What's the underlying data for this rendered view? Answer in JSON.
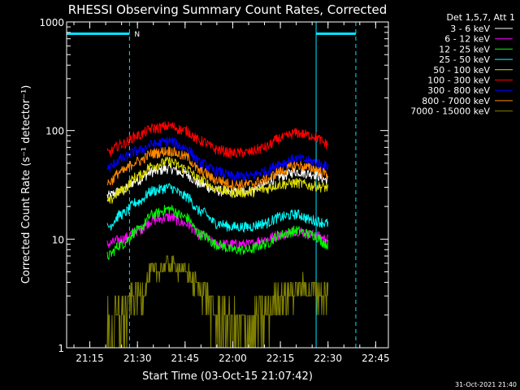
{
  "chart_data": {
    "type": "line",
    "title": "RHESSI Observing Summary Count Rates, Corrected",
    "xlabel": "Start Time (03-Oct-15 21:07:42)",
    "ylabel": "Corrected Count Rate (s⁻¹ detector⁻¹)",
    "yscale": "log",
    "ylim": [
      1,
      1000
    ],
    "y_ticks": [
      "1",
      "10",
      "100",
      "1000"
    ],
    "x_ticks": [
      "21:15",
      "21:30",
      "21:45",
      "22:00",
      "22:15",
      "22:30",
      "22:45"
    ],
    "xlim": [
      "21:07:42",
      "22:49:00"
    ],
    "grid": false,
    "legend_title": "Det 1,5,7, Att 1",
    "legend_position": "right",
    "data_start": "21:20:30",
    "data_end": "22:30:00",
    "series": [
      {
        "name": "3 - 6 keV",
        "color": "#ffffff",
        "x": [
          "21:20:30",
          "21:25",
          "21:30",
          "21:35",
          "21:40",
          "21:45",
          "21:50",
          "21:55",
          "22:00",
          "22:05",
          "22:10",
          "22:15",
          "22:20",
          "22:25",
          "22:30"
        ],
        "y": [
          25,
          28,
          35,
          42,
          45,
          40,
          32,
          28,
          27,
          28,
          32,
          38,
          42,
          40,
          35
        ]
      },
      {
        "name": "6 - 12 keV",
        "color": "#ff00ff",
        "x": [
          "21:20:30",
          "21:25",
          "21:30",
          "21:35",
          "21:40",
          "21:45",
          "21:50",
          "21:55",
          "22:00",
          "22:05",
          "22:10",
          "22:15",
          "22:20",
          "22:25",
          "22:30"
        ],
        "y": [
          9,
          10,
          12,
          15,
          16,
          14,
          11,
          9,
          9,
          9,
          10,
          11,
          12,
          11,
          10
        ]
      },
      {
        "name": "12 - 25 keV",
        "color": "#00ff00",
        "x": [
          "21:20:30",
          "21:25",
          "21:30",
          "21:35",
          "21:40",
          "21:45",
          "21:50",
          "21:55",
          "22:00",
          "22:05",
          "22:10",
          "22:15",
          "22:20",
          "22:25",
          "22:30"
        ],
        "y": [
          7,
          9,
          12,
          17,
          19,
          16,
          11,
          9,
          8,
          8,
          9,
          11,
          12,
          11,
          9
        ]
      },
      {
        "name": "25 - 50 keV",
        "color": "#00ffff",
        "x": [
          "21:20:30",
          "21:25",
          "21:30",
          "21:35",
          "21:40",
          "21:45",
          "21:50",
          "21:55",
          "22:00",
          "22:05",
          "22:10",
          "22:15",
          "22:20",
          "22:25",
          "22:30"
        ],
        "y": [
          13,
          17,
          22,
          28,
          30,
          25,
          18,
          14,
          13,
          13,
          14,
          16,
          17,
          15,
          14
        ]
      },
      {
        "name": "50 - 100 keV",
        "color": "#dddd00",
        "x": [
          "21:20:30",
          "21:25",
          "21:30",
          "21:35",
          "21:40",
          "21:45",
          "21:50",
          "21:55",
          "22:00",
          "22:05",
          "22:10",
          "22:15",
          "22:20",
          "22:25",
          "22:30"
        ],
        "y": [
          22,
          28,
          38,
          48,
          52,
          45,
          35,
          29,
          27,
          27,
          29,
          32,
          33,
          31,
          30
        ]
      },
      {
        "name": "100 - 300 keV",
        "color": "#ff0000",
        "x": [
          "21:20:30",
          "21:25",
          "21:30",
          "21:35",
          "21:40",
          "21:45",
          "21:50",
          "21:55",
          "22:00",
          "22:05",
          "22:10",
          "22:15",
          "22:20",
          "22:25",
          "22:30"
        ],
        "y": [
          62,
          75,
          90,
          105,
          110,
          100,
          80,
          67,
          62,
          63,
          70,
          85,
          95,
          90,
          75
        ]
      },
      {
        "name": "300 - 800 keV",
        "color": "#0000ff",
        "x": [
          "21:20:30",
          "21:25",
          "21:30",
          "21:35",
          "21:40",
          "21:45",
          "21:50",
          "21:55",
          "22:00",
          "22:05",
          "22:10",
          "22:15",
          "22:20",
          "22:25",
          "22:30"
        ],
        "y": [
          45,
          55,
          65,
          75,
          80,
          70,
          50,
          42,
          38,
          38,
          42,
          50,
          55,
          52,
          47
        ]
      },
      {
        "name": "800 - 7000 keV",
        "color": "#ff8800",
        "x": [
          "21:20:30",
          "21:25",
          "21:30",
          "21:35",
          "21:40",
          "21:45",
          "21:50",
          "21:55",
          "22:00",
          "22:05",
          "22:10",
          "22:15",
          "22:20",
          "22:25",
          "22:30"
        ],
        "y": [
          33,
          42,
          52,
          62,
          65,
          58,
          42,
          35,
          32,
          32,
          35,
          42,
          48,
          45,
          40
        ]
      },
      {
        "name": "7000 - 15000 keV",
        "color": "#808000",
        "x": [
          "21:20:30",
          "21:25",
          "21:30",
          "21:35",
          "21:40",
          "21:45",
          "21:50",
          "21:55",
          "22:00",
          "22:05",
          "22:10",
          "22:15",
          "22:20",
          "22:25",
          "22:30"
        ],
        "y": [
          1.5,
          2,
          3,
          5,
          6,
          5,
          3.5,
          2,
          1.5,
          1.5,
          2,
          3,
          3.5,
          3.5,
          3
        ]
      }
    ],
    "flags": {
      "color": "#00e5ff",
      "label": "N",
      "vlines_dashed": [
        "21:27:30",
        "22:38:45"
      ],
      "vlines_solid": [
        "21:07:42",
        "22:26:15"
      ],
      "bars": [
        [
          "21:07:42",
          "21:27:30"
        ],
        [
          "22:26:15",
          "22:38:45"
        ]
      ]
    }
  },
  "footer": {
    "timestamp": "31-Oct-2021 21:40"
  }
}
